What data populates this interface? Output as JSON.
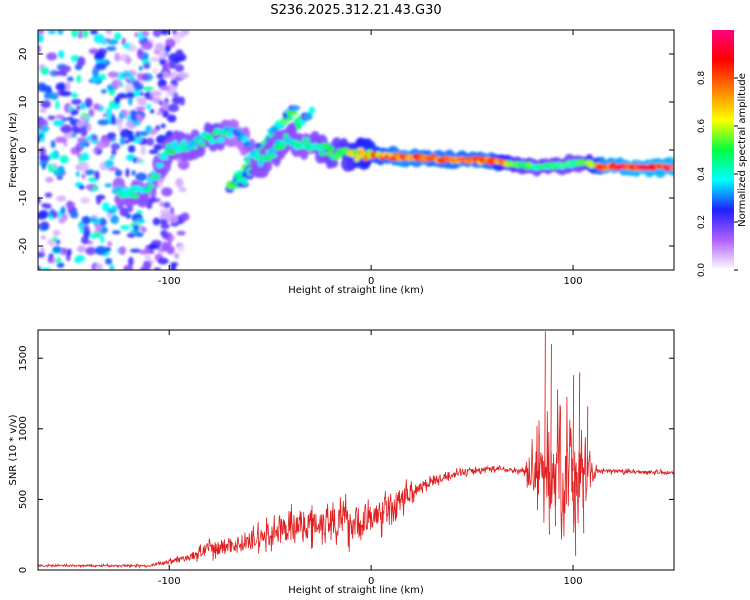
{
  "title": "S236.2025.312.21.43.G30",
  "chart_data": [
    {
      "type": "heatmap",
      "name": "spectrogram",
      "xlabel": "Height of straight line (km)",
      "ylabel": "Frequency (Hz)",
      "xlim": [
        -165,
        150
      ],
      "ylim": [
        -25,
        25
      ],
      "xticks": [
        -100,
        0,
        100
      ],
      "yticks": [
        -20,
        -10,
        0,
        10,
        20
      ],
      "colorbar": {
        "label": "Normalized spectral amplitude",
        "range": [
          0,
          1
        ],
        "ticks": [
          "0.0",
          "0.2",
          "0.4",
          "0.6",
          "0.8"
        ],
        "tick_values": [
          0.0,
          0.2,
          0.4,
          0.6,
          0.8
        ],
        "colors": [
          "#ffffff",
          "#b060ff",
          "#2020ff",
          "#00ffff",
          "#00ff40",
          "#ffff00",
          "#ff8000",
          "#ff0000",
          "#ff0080"
        ]
      },
      "ridge": [
        {
          "x": -125,
          "f": -9,
          "a": 0.4
        },
        {
          "x": -112,
          "f": -9,
          "a": 0.45
        },
        {
          "x": -100,
          "f": 0.5,
          "a": 0.45
        },
        {
          "x": -88,
          "f": 1.5,
          "a": 0.45
        },
        {
          "x": -76,
          "f": 3,
          "a": 0.5
        },
        {
          "x": -66,
          "f": 4,
          "a": 0.3
        },
        {
          "x": -55,
          "f": -3,
          "a": 0.45
        },
        {
          "x": -42,
          "f": 2,
          "a": 0.45
        },
        {
          "x": -30,
          "f": 1,
          "a": 0.45
        },
        {
          "x": -15,
          "f": -1,
          "a": 0.55
        },
        {
          "x": 0,
          "f": -1,
          "a": 0.75
        },
        {
          "x": 15,
          "f": -1.5,
          "a": 0.9
        },
        {
          "x": 30,
          "f": -1.8,
          "a": 0.85
        },
        {
          "x": 45,
          "f": -2,
          "a": 0.85
        },
        {
          "x": 60,
          "f": -2.3,
          "a": 0.85
        },
        {
          "x": 72,
          "f": -3,
          "a": 0.55
        },
        {
          "x": 82,
          "f": -3.5,
          "a": 0.5
        },
        {
          "x": 95,
          "f": -3.3,
          "a": 0.5
        },
        {
          "x": 105,
          "f": -2.5,
          "a": 0.5
        },
        {
          "x": 115,
          "f": -3.5,
          "a": 0.9
        },
        {
          "x": 130,
          "f": -3.6,
          "a": 0.95
        },
        {
          "x": 150,
          "f": -3.6,
          "a": 0.95
        }
      ],
      "diagonal_ridges": [
        {
          "x0": -70,
          "f0": -8,
          "x1": -38,
          "f1": 9,
          "a": 0.4
        },
        {
          "x0": -65,
          "f0": -7,
          "x1": -30,
          "f1": 8,
          "a": 0.35
        }
      ],
      "noise_region": {
        "x_from": -165,
        "x_to": -100,
        "a": 0.25
      }
    },
    {
      "type": "line",
      "name": "snr",
      "xlabel": "Height of straight line (km)",
      "ylabel": "SNR (10 * v/v)",
      "xlim": [
        -165,
        150
      ],
      "ylim": [
        0,
        1700
      ],
      "xticks": [
        -100,
        0,
        100
      ],
      "yticks": [
        0,
        500,
        1000,
        1500
      ],
      "color": "#e02020",
      "envelope": [
        {
          "x": -165,
          "mean": 30,
          "noise": 12
        },
        {
          "x": -110,
          "mean": 30,
          "noise": 12
        },
        {
          "x": -90,
          "mean": 90,
          "noise": 40
        },
        {
          "x": -80,
          "mean": 150,
          "noise": 90
        },
        {
          "x": -60,
          "mean": 200,
          "noise": 110
        },
        {
          "x": -40,
          "mean": 300,
          "noise": 170
        },
        {
          "x": -20,
          "mean": 360,
          "noise": 210
        },
        {
          "x": -5,
          "mean": 330,
          "noise": 220
        },
        {
          "x": 0,
          "mean": 360,
          "noise": 180
        },
        {
          "x": 10,
          "mean": 450,
          "noise": 170
        },
        {
          "x": 25,
          "mean": 600,
          "noise": 70
        },
        {
          "x": 40,
          "mean": 680,
          "noise": 40
        },
        {
          "x": 60,
          "mean": 720,
          "noise": 30
        },
        {
          "x": 75,
          "mean": 700,
          "noise": 30
        },
        {
          "x": 80,
          "mean": 700,
          "noise": 260
        },
        {
          "x": 90,
          "mean": 700,
          "noise": 600
        },
        {
          "x": 100,
          "mean": 700,
          "noise": 550
        },
        {
          "x": 108,
          "mean": 700,
          "noise": 250
        },
        {
          "x": 112,
          "mean": 700,
          "noise": 25
        },
        {
          "x": 150,
          "mean": 690,
          "noise": 20
        }
      ],
      "spikes": [
        {
          "x": 83,
          "y": 960
        },
        {
          "x": 86,
          "y": 1690
        },
        {
          "x": 88,
          "y": 250
        },
        {
          "x": 89,
          "y": 1600
        },
        {
          "x": 91,
          "y": 310
        },
        {
          "x": 93,
          "y": 1000
        },
        {
          "x": 100,
          "y": 1380
        },
        {
          "x": 101,
          "y": 100
        },
        {
          "x": 103,
          "y": 1400
        },
        {
          "x": 105,
          "y": 260
        },
        {
          "x": 107,
          "y": 1160
        }
      ]
    }
  ]
}
